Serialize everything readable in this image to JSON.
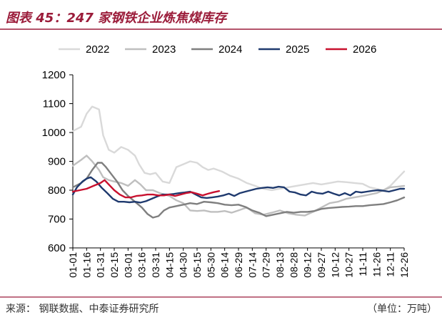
{
  "header": {
    "title": "图表 45：247 家钢铁企业炼焦煤库存"
  },
  "footer": {
    "source": "来源：  钢联数据、中泰证券研究所",
    "unit": "（单位：万吨）"
  },
  "colors": {
    "title": "#9b1c3a",
    "rule": "#9b1c3a",
    "s2022": "#d9d9d9",
    "s2023": "#bfbfbf",
    "s2024": "#7f7f7f",
    "s2025": "#1f3a6e",
    "s2026": "#c8102e"
  },
  "chart_data": {
    "type": "line",
    "x": [
      "01-01",
      "01-16",
      "01-31",
      "02-15",
      "03-01",
      "03-16",
      "03-31",
      "04-15",
      "04-30",
      "05-15",
      "05-30",
      "06-14",
      "06-29",
      "07-14",
      "07-29",
      "08-13",
      "08-28",
      "09-12",
      "09-27",
      "10-12",
      "10-27",
      "11-11",
      "11-26",
      "12-11",
      "12-26"
    ],
    "ylim": [
      600,
      1200
    ],
    "yticks": [
      600,
      700,
      800,
      900,
      1000,
      1100,
      1200
    ],
    "grid": false,
    "legend": "top",
    "series": [
      {
        "name": "2022",
        "color": "#d9d9d9",
        "points": [
          [
            0,
            1005
          ],
          [
            0.6,
            1020
          ],
          [
            1,
            1065
          ],
          [
            1.4,
            1090
          ],
          [
            1.9,
            1080
          ],
          [
            2.2,
            990
          ],
          [
            2.6,
            940
          ],
          [
            3,
            930
          ],
          [
            3.5,
            950
          ],
          [
            4,
            940
          ],
          [
            4.5,
            920
          ],
          [
            4.8,
            890
          ],
          [
            5.2,
            860
          ],
          [
            5.6,
            855
          ],
          [
            6,
            860
          ],
          [
            6.5,
            830
          ],
          [
            7,
            825
          ],
          [
            7.5,
            880
          ],
          [
            8,
            890
          ],
          [
            8.5,
            900
          ],
          [
            9,
            895
          ],
          [
            9.4,
            880
          ],
          [
            9.8,
            870
          ],
          [
            10.2,
            875
          ],
          [
            10.8,
            865
          ],
          [
            11.4,
            850
          ],
          [
            12,
            840
          ],
          [
            12.6,
            825
          ],
          [
            13.2,
            815
          ],
          [
            13.8,
            805
          ],
          [
            14.4,
            800
          ],
          [
            15,
            805
          ],
          [
            15.6,
            810
          ],
          [
            16.2,
            815
          ],
          [
            16.8,
            820
          ],
          [
            17.4,
            825
          ],
          [
            18,
            820
          ],
          [
            18.6,
            825
          ],
          [
            19.2,
            830
          ],
          [
            19.8,
            828
          ],
          [
            20.4,
            825
          ],
          [
            21,
            822
          ],
          [
            21.5,
            810
          ],
          [
            22,
            805
          ],
          [
            22.5,
            800
          ],
          [
            23,
            815
          ],
          [
            23.5,
            840
          ],
          [
            24,
            865
          ]
        ]
      },
      {
        "name": "2023",
        "color": "#bfbfbf",
        "points": [
          [
            0,
            885
          ],
          [
            0.6,
            905
          ],
          [
            1,
            920
          ],
          [
            1.4,
            900
          ],
          [
            1.9,
            870
          ],
          [
            2.2,
            845
          ],
          [
            2.6,
            835
          ],
          [
            3,
            830
          ],
          [
            3.5,
            825
          ],
          [
            4,
            815
          ],
          [
            4.5,
            835
          ],
          [
            4.9,
            820
          ],
          [
            5.3,
            800
          ],
          [
            5.8,
            800
          ],
          [
            6.3,
            790
          ],
          [
            7,
            780
          ],
          [
            7.5,
            765
          ],
          [
            8,
            755
          ],
          [
            8.5,
            730
          ],
          [
            9,
            728
          ],
          [
            9.5,
            730
          ],
          [
            10,
            725
          ],
          [
            10.5,
            725
          ],
          [
            11,
            728
          ],
          [
            11.5,
            722
          ],
          [
            12,
            730
          ],
          [
            12.6,
            740
          ],
          [
            13.2,
            720
          ],
          [
            13.8,
            715
          ],
          [
            14.4,
            722
          ],
          [
            15,
            730
          ],
          [
            15.6,
            720
          ],
          [
            16.2,
            715
          ],
          [
            16.8,
            712
          ],
          [
            17.4,
            725
          ],
          [
            18,
            740
          ],
          [
            18.6,
            755
          ],
          [
            19.2,
            760
          ],
          [
            19.8,
            770
          ],
          [
            20.4,
            775
          ],
          [
            21,
            780
          ],
          [
            21.5,
            785
          ],
          [
            22,
            790
          ],
          [
            22.5,
            800
          ],
          [
            23,
            810
          ],
          [
            23.5,
            812
          ],
          [
            24,
            815
          ]
        ]
      },
      {
        "name": "2024",
        "color": "#7f7f7f",
        "points": [
          [
            0,
            810
          ],
          [
            0.6,
            825
          ],
          [
            1,
            840
          ],
          [
            1.4,
            870
          ],
          [
            1.8,
            895
          ],
          [
            2.1,
            895
          ],
          [
            2.4,
            880
          ],
          [
            2.8,
            855
          ],
          [
            3.2,
            830
          ],
          [
            3.6,
            800
          ],
          [
            4,
            780
          ],
          [
            4.5,
            760
          ],
          [
            5,
            740
          ],
          [
            5.4,
            718
          ],
          [
            5.8,
            705
          ],
          [
            6.2,
            710
          ],
          [
            6.6,
            730
          ],
          [
            7,
            740
          ],
          [
            7.5,
            745
          ],
          [
            8,
            750
          ],
          [
            8.5,
            755
          ],
          [
            9,
            752
          ],
          [
            9.5,
            760
          ],
          [
            10,
            758
          ],
          [
            10.5,
            755
          ],
          [
            11,
            750
          ],
          [
            11.5,
            748
          ],
          [
            12,
            750
          ],
          [
            12.5,
            742
          ],
          [
            13,
            730
          ],
          [
            13.5,
            722
          ],
          [
            14,
            710
          ],
          [
            14.5,
            715
          ],
          [
            15,
            720
          ],
          [
            15.5,
            725
          ],
          [
            16,
            722
          ],
          [
            16.5,
            725
          ],
          [
            17,
            725
          ],
          [
            17.5,
            728
          ],
          [
            18,
            735
          ],
          [
            18.5,
            738
          ],
          [
            19,
            740
          ],
          [
            19.5,
            742
          ],
          [
            20,
            743
          ],
          [
            20.5,
            745
          ],
          [
            21,
            745
          ],
          [
            21.5,
            748
          ],
          [
            22,
            750
          ],
          [
            22.5,
            752
          ],
          [
            23,
            758
          ],
          [
            23.5,
            765
          ],
          [
            24,
            775
          ]
        ]
      },
      {
        "name": "2025",
        "color": "#1f3a6e",
        "points": [
          [
            0,
            785
          ],
          [
            0.3,
            810
          ],
          [
            0.7,
            830
          ],
          [
            1,
            840
          ],
          [
            1.3,
            845
          ],
          [
            1.7,
            830
          ],
          [
            2.1,
            808
          ],
          [
            2.5,
            790
          ],
          [
            2.9,
            770
          ],
          [
            3.3,
            760
          ],
          [
            3.7,
            760
          ],
          [
            4.1,
            758
          ],
          [
            4.5,
            760
          ],
          [
            4.9,
            757
          ],
          [
            5.3,
            762
          ],
          [
            5.7,
            770
          ],
          [
            6.1,
            778
          ],
          [
            6.5,
            785
          ],
          [
            6.9,
            785
          ],
          [
            7.3,
            787
          ],
          [
            7.7,
            790
          ],
          [
            8.1,
            792
          ],
          [
            8.5,
            795
          ],
          [
            8.9,
            785
          ],
          [
            9.3,
            775
          ],
          [
            9.7,
            773
          ],
          [
            10.1,
            775
          ],
          [
            10.5,
            778
          ],
          [
            10.9,
            782
          ],
          [
            11.3,
            788
          ],
          [
            11.7,
            780
          ],
          [
            12.1,
            790
          ],
          [
            12.5,
            795
          ],
          [
            12.9,
            800
          ],
          [
            13.3,
            805
          ],
          [
            13.7,
            808
          ],
          [
            14.1,
            810
          ],
          [
            14.5,
            808
          ],
          [
            14.9,
            812
          ],
          [
            15.3,
            810
          ],
          [
            15.7,
            795
          ],
          [
            16.1,
            792
          ],
          [
            16.5,
            785
          ],
          [
            16.9,
            782
          ],
          [
            17.3,
            795
          ],
          [
            17.7,
            790
          ],
          [
            18.1,
            788
          ],
          [
            18.5,
            795
          ],
          [
            18.9,
            788
          ],
          [
            19.3,
            782
          ],
          [
            19.7,
            790
          ],
          [
            20.1,
            782
          ],
          [
            20.5,
            795
          ],
          [
            20.9,
            792
          ],
          [
            21.3,
            795
          ],
          [
            21.7,
            798
          ],
          [
            22.1,
            800
          ],
          [
            22.5,
            798
          ],
          [
            22.9,
            795
          ],
          [
            23.3,
            800
          ],
          [
            23.7,
            805
          ],
          [
            24,
            805
          ]
        ]
      },
      {
        "name": "2026",
        "color": "#c8102e",
        "points": [
          [
            0,
            795
          ],
          [
            0.5,
            800
          ],
          [
            1,
            805
          ],
          [
            1.5,
            815
          ],
          [
            2,
            825
          ],
          [
            2.3,
            835
          ],
          [
            2.6,
            820
          ],
          [
            3,
            800
          ],
          [
            3.4,
            785
          ],
          [
            3.8,
            775
          ],
          [
            4.2,
            775
          ],
          [
            4.6,
            780
          ],
          [
            5,
            782
          ],
          [
            5.4,
            785
          ],
          [
            5.8,
            785
          ],
          [
            6.2,
            782
          ],
          [
            6.6,
            782
          ],
          [
            7,
            785
          ],
          [
            7.4,
            780
          ],
          [
            7.8,
            785
          ],
          [
            8.2,
            790
          ],
          [
            8.6,
            793
          ],
          [
            9,
            788
          ],
          [
            9.4,
            782
          ],
          [
            9.8,
            788
          ],
          [
            10.2,
            793
          ],
          [
            10.6,
            797
          ]
        ]
      }
    ]
  }
}
